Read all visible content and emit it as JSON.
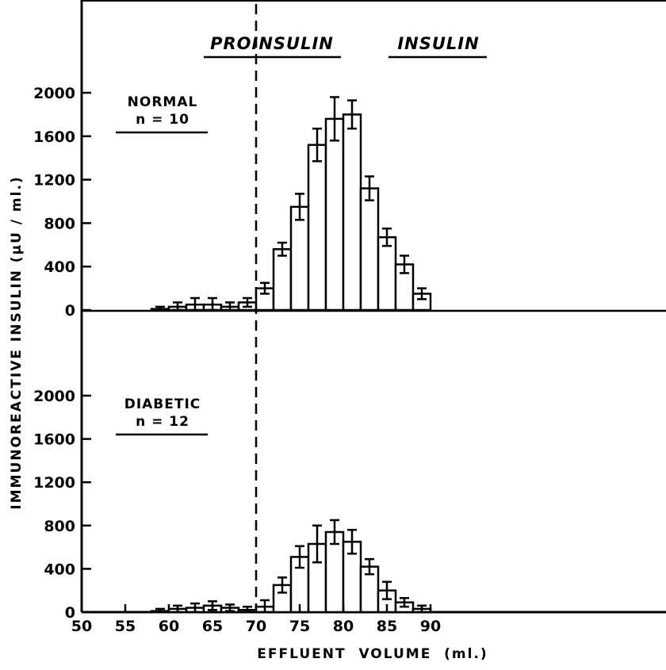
{
  "chart_data": {
    "type": "bar",
    "xlabel": "EFFLUENT  VOLUME  (ml.)",
    "ylabel": "IMMUNOREACTIVE  INSULIN  (μU / ml.)",
    "xlim": [
      50,
      92
    ],
    "x_ticks": [
      50,
      55,
      60,
      65,
      70,
      75,
      80,
      85,
      90
    ],
    "y_ticks": [
      0,
      400,
      800,
      1200,
      1600,
      2000
    ],
    "ylim": [
      0,
      2000
    ],
    "bin_width": 2,
    "divider_x": 70,
    "region_labels": [
      "PROINSULIN",
      "INSULIN"
    ],
    "panels": [
      {
        "label": "NORMAL",
        "n_label": "n = 10",
        "bins": [
          {
            "x0": 58,
            "value": 10,
            "err": 20
          },
          {
            "x0": 60,
            "value": 30,
            "err": 40
          },
          {
            "x0": 62,
            "value": 50,
            "err": 60
          },
          {
            "x0": 64,
            "value": 50,
            "err": 60
          },
          {
            "x0": 66,
            "value": 30,
            "err": 40
          },
          {
            "x0": 68,
            "value": 70,
            "err": 40
          },
          {
            "x0": 70,
            "value": 200,
            "err": 50
          },
          {
            "x0": 72,
            "value": 560,
            "err": 60
          },
          {
            "x0": 74,
            "value": 950,
            "err": 120
          },
          {
            "x0": 76,
            "value": 1520,
            "err": 150
          },
          {
            "x0": 78,
            "value": 1760,
            "err": 200
          },
          {
            "x0": 80,
            "value": 1800,
            "err": 130
          },
          {
            "x0": 82,
            "value": 1120,
            "err": 110
          },
          {
            "x0": 84,
            "value": 670,
            "err": 80
          },
          {
            "x0": 86,
            "value": 420,
            "err": 80
          },
          {
            "x0": 88,
            "value": 150,
            "err": 50
          }
        ]
      },
      {
        "label": "DIABETIC",
        "n_label": "n = 12",
        "bins": [
          {
            "x0": 58,
            "value": 10,
            "err": 20
          },
          {
            "x0": 60,
            "value": 30,
            "err": 30
          },
          {
            "x0": 62,
            "value": 40,
            "err": 40
          },
          {
            "x0": 64,
            "value": 60,
            "err": 40
          },
          {
            "x0": 66,
            "value": 40,
            "err": 30
          },
          {
            "x0": 68,
            "value": 20,
            "err": 30
          },
          {
            "x0": 70,
            "value": 50,
            "err": 60
          },
          {
            "x0": 72,
            "value": 250,
            "err": 70
          },
          {
            "x0": 74,
            "value": 510,
            "err": 100
          },
          {
            "x0": 76,
            "value": 630,
            "err": 170
          },
          {
            "x0": 78,
            "value": 740,
            "err": 110
          },
          {
            "x0": 80,
            "value": 650,
            "err": 110
          },
          {
            "x0": 82,
            "value": 420,
            "err": 70
          },
          {
            "x0": 84,
            "value": 200,
            "err": 80
          },
          {
            "x0": 86,
            "value": 90,
            "err": 40
          },
          {
            "x0": 88,
            "value": 30,
            "err": 30
          }
        ]
      }
    ]
  }
}
